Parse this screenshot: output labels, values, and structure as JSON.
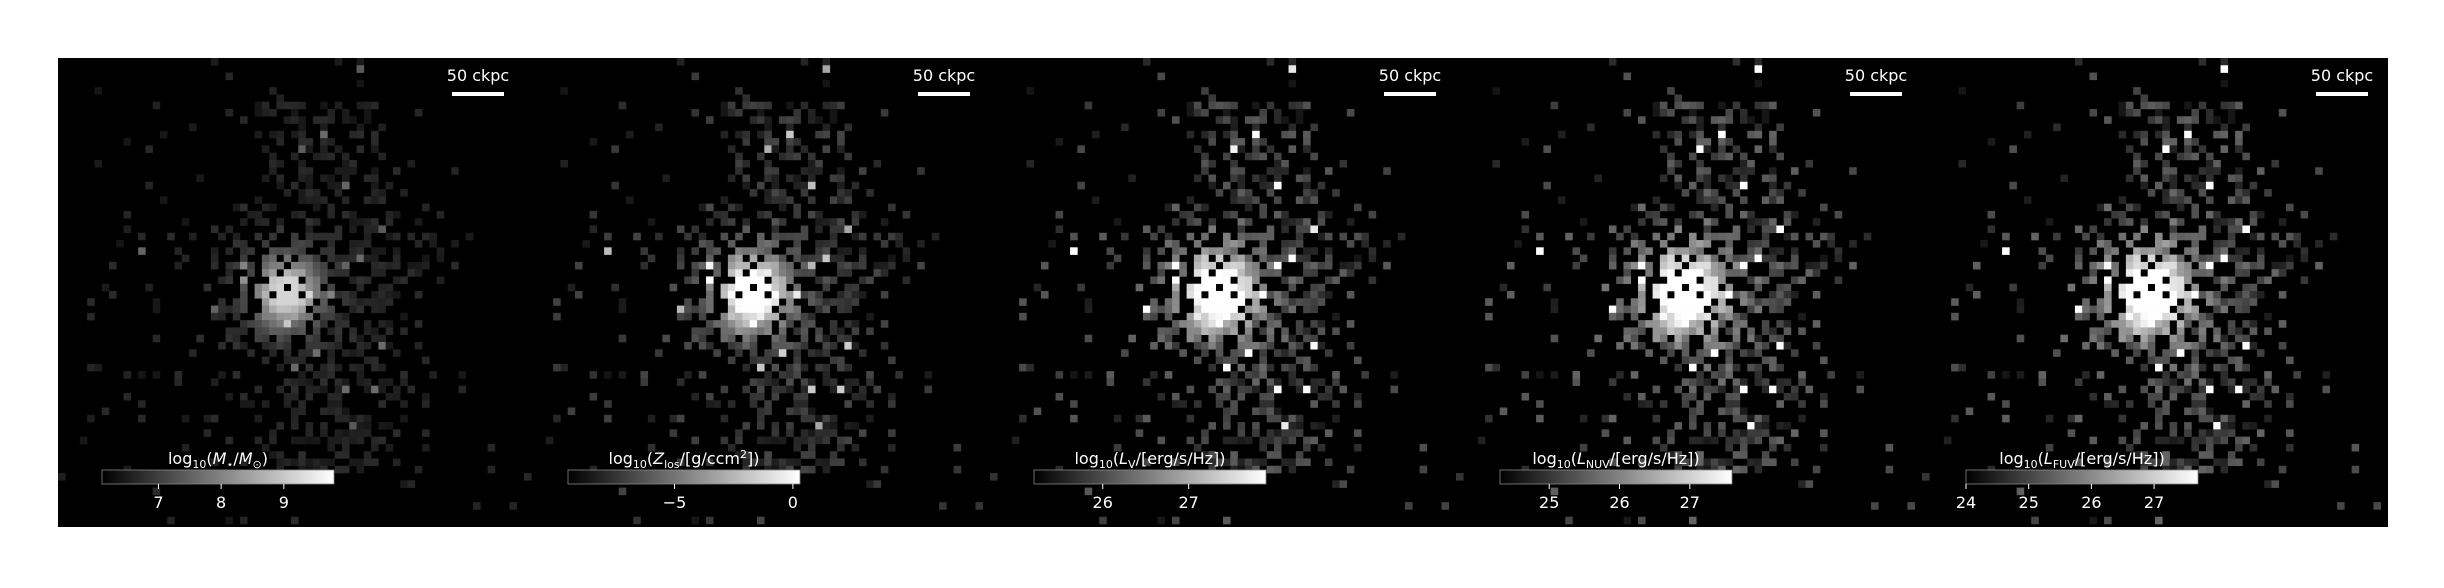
{
  "chart_data": [
    {
      "type": "image",
      "scalebar": "50 ckpc",
      "colorbar": {
        "label": [
          {
            "text": "log"
          },
          {
            "text": "10",
            "sub": true
          },
          {
            "text": "("
          },
          {
            "text": "M",
            "italic": true
          },
          {
            "text": "⋆",
            "sub": true
          },
          {
            "text": "/"
          },
          {
            "text": "M",
            "italic": true
          },
          {
            "text": "⊙",
            "sub": true
          },
          {
            "text": ")"
          }
        ],
        "lim": [
          6.1,
          9.8
        ],
        "ticks": [
          7,
          8,
          9
        ]
      }
    },
    {
      "type": "image",
      "scalebar": "50 ckpc",
      "colorbar": {
        "label": [
          {
            "text": "log"
          },
          {
            "text": "10",
            "sub": true
          },
          {
            "text": "("
          },
          {
            "text": "Z",
            "italic": true
          },
          {
            "text": "los",
            "sub": true
          },
          {
            "text": "/[g/ccm"
          },
          {
            "text": "2",
            "sup": true
          },
          {
            "text": "])"
          }
        ],
        "lim": [
          -9.5,
          0.3
        ],
        "ticks": [
          {
            "value": -5,
            "label": "−5"
          },
          0
        ]
      }
    },
    {
      "type": "image",
      "scalebar": "50 ckpc",
      "colorbar": {
        "label": [
          {
            "text": "log"
          },
          {
            "text": "10",
            "sub": true
          },
          {
            "text": "("
          },
          {
            "text": "L",
            "italic": true
          },
          {
            "text": "V",
            "sub": true
          },
          {
            "text": "/[erg/s/Hz])"
          }
        ],
        "lim": [
          25.2,
          27.9
        ],
        "ticks": [
          26,
          27
        ]
      }
    },
    {
      "type": "image",
      "scalebar": "50 ckpc",
      "colorbar": {
        "label": [
          {
            "text": "log"
          },
          {
            "text": "10",
            "sub": true
          },
          {
            "text": "("
          },
          {
            "text": "L",
            "italic": true
          },
          {
            "text": "NUV",
            "sub": true
          },
          {
            "text": "/[erg/s/Hz])"
          }
        ],
        "lim": [
          24.3,
          27.6
        ],
        "ticks": [
          25,
          26,
          27
        ]
      }
    },
    {
      "type": "image",
      "scalebar": "50 ckpc",
      "colorbar": {
        "label": [
          {
            "text": "log"
          },
          {
            "text": "10",
            "sub": true
          },
          {
            "text": "("
          },
          {
            "text": "L",
            "italic": true
          },
          {
            "text": "FUV",
            "sub": true
          },
          {
            "text": "/[erg/s/Hz])"
          }
        ],
        "lim": [
          24.0,
          27.7
        ],
        "ticks": [
          24,
          25,
          26,
          27
        ]
      }
    }
  ]
}
